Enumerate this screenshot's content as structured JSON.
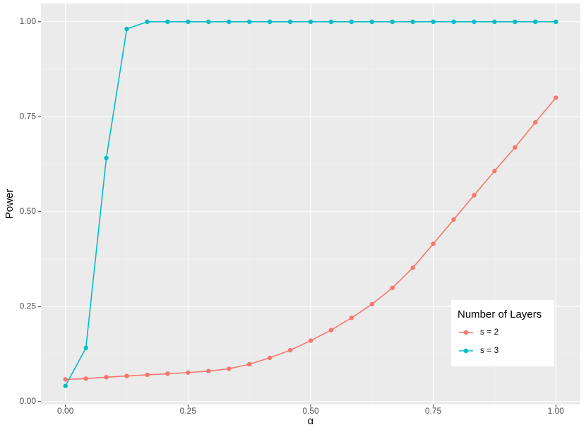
{
  "chart_data": {
    "type": "line",
    "xlabel": "α",
    "ylabel": "Power",
    "x": [
      0,
      0.0417,
      0.0833,
      0.125,
      0.1667,
      0.2083,
      0.25,
      0.2917,
      0.3333,
      0.375,
      0.4167,
      0.4583,
      0.5,
      0.5417,
      0.5833,
      0.625,
      0.6667,
      0.7083,
      0.75,
      0.7917,
      0.8333,
      0.875,
      0.9167,
      0.9583,
      1
    ],
    "series": [
      {
        "name": "s = 2",
        "color": "#F8766D",
        "values": [
          0.058,
          0.06,
          0.064,
          0.067,
          0.07,
          0.073,
          0.076,
          0.08,
          0.086,
          0.098,
          0.115,
          0.135,
          0.16,
          0.188,
          0.22,
          0.256,
          0.299,
          0.352,
          0.415,
          0.479,
          0.543,
          0.607,
          0.669,
          0.735,
          0.8
        ]
      },
      {
        "name": "s = 3",
        "color": "#00BFC4",
        "values": [
          0.041,
          0.141,
          0.641,
          0.981,
          1,
          1,
          1,
          1,
          1,
          1,
          1,
          1,
          1,
          1,
          1,
          1,
          1,
          1,
          1,
          1,
          1,
          1,
          1,
          1,
          1
        ]
      }
    ],
    "xlim": [
      -0.05,
      1.05
    ],
    "ylim": [
      -0.008,
      1.048
    ],
    "xticks": [
      {
        "value": 0,
        "label": "0.00"
      },
      {
        "value": 0.25,
        "label": "0.25"
      },
      {
        "value": 0.5,
        "label": "0.50"
      },
      {
        "value": 0.75,
        "label": "0.75"
      },
      {
        "value": 1,
        "label": "1.00"
      }
    ],
    "yticks": [
      {
        "value": 0,
        "label": "0.00"
      },
      {
        "value": 0.25,
        "label": "0.25"
      },
      {
        "value": 0.5,
        "label": "0.50"
      },
      {
        "value": 0.75,
        "label": "0.75"
      },
      {
        "value": 1,
        "label": "1.00"
      }
    ],
    "grid": true,
    "legend": {
      "title": "Number of Layers",
      "position": "bottom-right"
    }
  }
}
